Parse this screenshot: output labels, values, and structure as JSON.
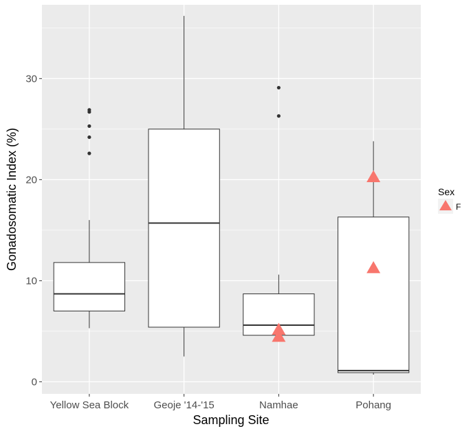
{
  "chart_data": {
    "type": "box",
    "xlabel": "Sampling Site",
    "ylabel": "Gonadosomatic Index (%)",
    "ylim": [
      -1.2,
      37.3
    ],
    "yticks": [
      0,
      10,
      20,
      30
    ],
    "grid": true,
    "legend_position": "right",
    "categories": [
      "Yellow Sea Block",
      "Geoje '14-'15",
      "Namhae",
      "Pohang"
    ],
    "boxes": [
      {
        "category": "Yellow Sea Block",
        "whisker_low": 5.3,
        "q1": 7.0,
        "median": 8.7,
        "q3": 11.8,
        "whisker_high": 16.0,
        "outliers": [
          22.6,
          24.2,
          25.3,
          26.7,
          26.9
        ]
      },
      {
        "category": "Geoje '14-'15",
        "whisker_low": 2.5,
        "q1": 5.4,
        "median": 15.7,
        "q3": 25.0,
        "whisker_high": 36.2,
        "outliers": []
      },
      {
        "category": "Namhae",
        "whisker_low": 4.6,
        "q1": 4.6,
        "median": 5.6,
        "q3": 8.7,
        "whisker_high": 10.6,
        "outliers": [
          26.3,
          29.1
        ]
      },
      {
        "category": "Pohang",
        "whisker_low": 0.7,
        "q1": 0.9,
        "median": 1.1,
        "q3": 16.3,
        "whisker_high": 23.8,
        "outliers": []
      }
    ],
    "points_series": [
      {
        "name": "F",
        "color": "#F8766D",
        "shape": "triangle",
        "points": [
          {
            "category": "Namhae",
            "y": 4.4
          },
          {
            "category": "Namhae",
            "y": 5.1
          },
          {
            "category": "Pohang",
            "y": 11.2
          },
          {
            "category": "Pohang",
            "y": 20.2
          }
        ]
      }
    ],
    "legend": {
      "title": "Sex",
      "entries": [
        "F"
      ]
    },
    "colors": {
      "panel": "#EBEBEB",
      "grid": "#FFFFFF",
      "box_fill": "#FFFFFF",
      "box_line": "#333333",
      "outlier": "#333333"
    }
  }
}
